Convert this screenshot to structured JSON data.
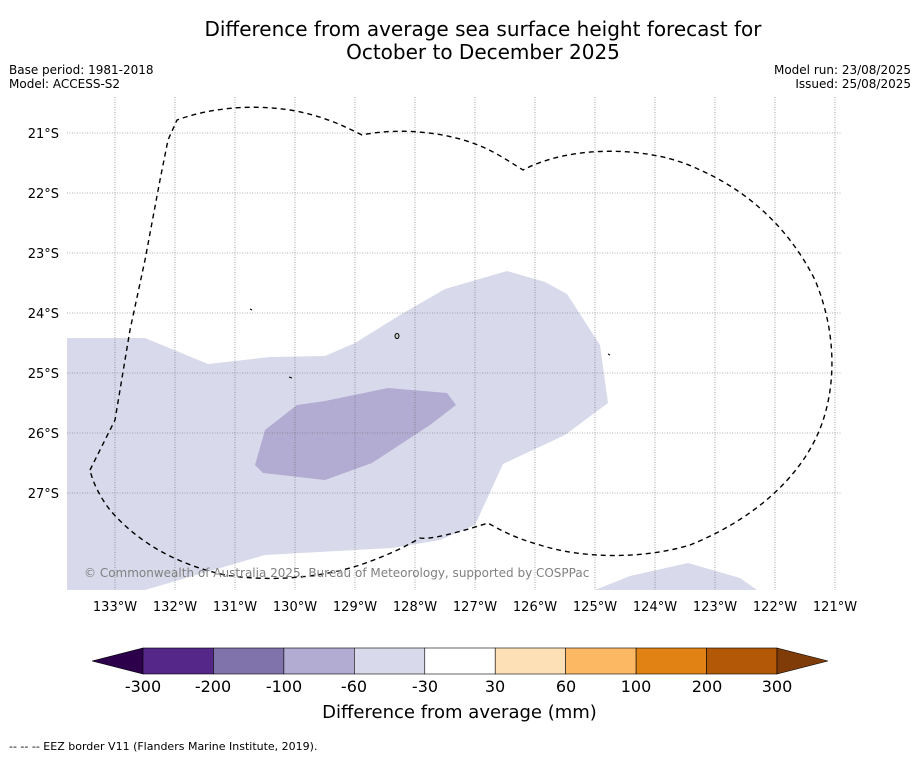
{
  "title_line1": "Difference from average sea surface height forecast for",
  "title_line2": "October to December 2025",
  "base_period": "Base period: 1981-2018",
  "model": "Model: ACCESS-S2",
  "model_run": "Model run: 23/08/2025",
  "issued": "Issued: 25/08/2025",
  "copyright": "© Commonwealth of Australia 2025, Bureau of Meteorology, supported by COSPPac",
  "latitudes": [
    "21°S",
    "22°S",
    "23°S",
    "24°S",
    "25°S",
    "26°S",
    "27°S"
  ],
  "longitudes": [
    "133°W",
    "132°W",
    "131°W",
    "130°W",
    "129°W",
    "128°W",
    "127°W",
    "126°W",
    "125°W",
    "124°W",
    "123°W",
    "122°W",
    "121°W"
  ],
  "colorbar": {
    "label": "Difference from average (mm)",
    "ticks": [
      "-300",
      "-200",
      "-100",
      "-60",
      "-30",
      "30",
      "60",
      "100",
      "200",
      "300"
    ],
    "colors": [
      "#2d004b",
      "#542788",
      "#8073ac",
      "#b2abd2",
      "#d8daeb",
      "#ffffff",
      "#fee0b6",
      "#fdb863",
      "#e08214",
      "#b35806",
      "#7f3b08"
    ]
  },
  "footnote": "--  --  -- EEZ border V11 (Flanders Marine Institute, 2019)."
}
